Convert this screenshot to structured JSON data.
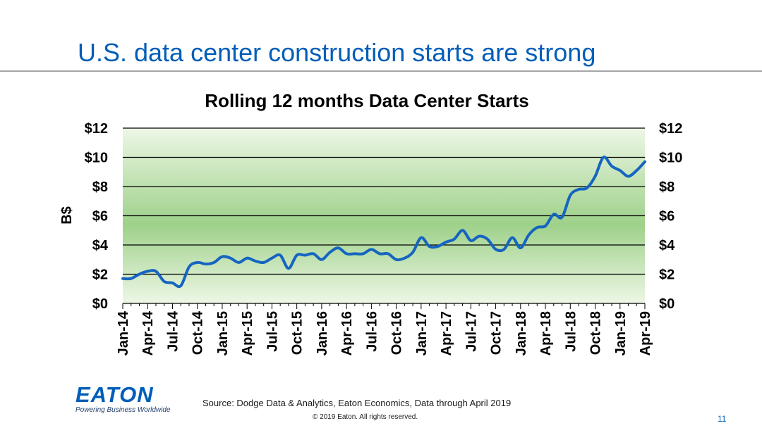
{
  "slide": {
    "title": "U.S. data center construction starts are strong",
    "source": "Source: Dodge Data & Analytics, Eaton Economics, Data through April 2019",
    "copyright": "© 2019 Eaton. All rights reserved.",
    "page_number": "11"
  },
  "logo": {
    "word": "EATON",
    "tagline": "Powering Business Worldwide"
  },
  "colors": {
    "title": "#005eb8",
    "line": "#1565c0",
    "gradient_center": "#9ed18a",
    "gradient_edge": "#eef7e6"
  },
  "chart_data": {
    "type": "line",
    "title": "Rolling 12 months Data Center Starts",
    "ylabel": "B$",
    "ylim": [
      0,
      12
    ],
    "y_ticks": [
      0,
      2,
      4,
      6,
      8,
      10,
      12
    ],
    "y_tick_labels": [
      "$0",
      "$2",
      "$4",
      "$6",
      "$8",
      "$10",
      "$12"
    ],
    "y_tick_labels_right": [
      "$0",
      "$2",
      "$4",
      "$6",
      "$8",
      "$10",
      "$12"
    ],
    "x_tick_labels": [
      "Jan-14",
      "Apr-14",
      "Jul-14",
      "Oct-14",
      "Jan-15",
      "Apr-15",
      "Jul-15",
      "Oct-15",
      "Jan-16",
      "Apr-16",
      "Jul-16",
      "Oct-16",
      "Jan-17",
      "Apr-17",
      "Jul-17",
      "Oct-17",
      "Jan-18",
      "Apr-18",
      "Jul-18",
      "Oct-18",
      "Jan-19",
      "Apr-19"
    ],
    "grid": true,
    "series": [
      {
        "x": [
          "Jan-14",
          "Feb-14",
          "Mar-14",
          "Apr-14",
          "May-14",
          "Jun-14",
          "Jul-14",
          "Aug-14",
          "Sep-14",
          "Oct-14",
          "Nov-14",
          "Dec-14",
          "Jan-15",
          "Feb-15",
          "Mar-15",
          "Apr-15",
          "May-15",
          "Jun-15",
          "Jul-15",
          "Aug-15",
          "Sep-15",
          "Oct-15",
          "Nov-15",
          "Dec-15",
          "Jan-16",
          "Feb-16",
          "Mar-16",
          "Apr-16",
          "May-16",
          "Jun-16",
          "Jul-16",
          "Aug-16",
          "Sep-16",
          "Oct-16",
          "Nov-16",
          "Dec-16",
          "Jan-17",
          "Feb-17",
          "Mar-17",
          "Apr-17",
          "May-17",
          "Jun-17",
          "Jul-17",
          "Aug-17",
          "Sep-17",
          "Oct-17",
          "Nov-17",
          "Dec-17",
          "Jan-18",
          "Feb-18",
          "Mar-18",
          "Apr-18",
          "May-18",
          "Jun-18",
          "Jul-18",
          "Aug-18",
          "Sep-18",
          "Oct-18",
          "Nov-18",
          "Dec-18",
          "Jan-19",
          "Feb-19",
          "Mar-19",
          "Apr-19"
        ],
        "values": [
          1.7,
          1.7,
          2.0,
          2.2,
          2.2,
          1.5,
          1.4,
          1.2,
          2.5,
          2.8,
          2.7,
          2.8,
          3.2,
          3.1,
          2.8,
          3.1,
          2.9,
          2.8,
          3.1,
          3.3,
          2.4,
          3.3,
          3.3,
          3.4,
          3.0,
          3.5,
          3.8,
          3.4,
          3.4,
          3.4,
          3.7,
          3.4,
          3.4,
          3.0,
          3.1,
          3.5,
          4.5,
          3.9,
          3.9,
          4.2,
          4.4,
          5.0,
          4.3,
          4.6,
          4.4,
          3.7,
          3.7,
          4.5,
          3.8,
          4.7,
          5.2,
          5.3,
          6.1,
          5.9,
          7.4,
          7.8,
          7.9,
          8.7,
          10.0,
          9.4,
          9.1,
          8.7,
          9.1,
          9.7
        ]
      }
    ]
  }
}
